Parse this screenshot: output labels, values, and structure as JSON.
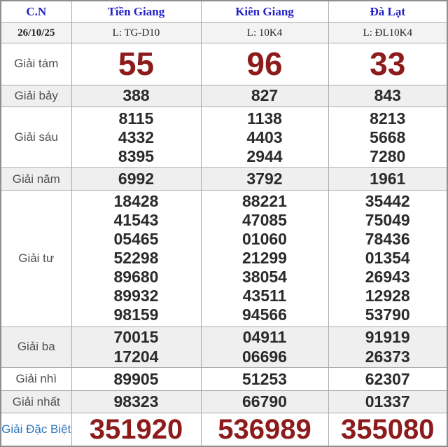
{
  "colors": {
    "link_blue": "#2222c8",
    "special_label_blue": "#2b74ba",
    "prize_red": "#8d1b1b",
    "row_stripe_gray": "#efefef"
  },
  "header": {
    "day": "C.N",
    "provinces": [
      "Tiền Giang",
      "Kiên Giang",
      "Đà Lạt"
    ]
  },
  "date_row": {
    "date": "26/10/25",
    "codes": [
      "L: TG-D10",
      "L: 10K4",
      "L: ĐL10K4"
    ]
  },
  "prizes": [
    {
      "label": "Giải tám",
      "cols": [
        [
          "55"
        ],
        [
          "96"
        ],
        [
          "33"
        ]
      ]
    },
    {
      "label": "Giải bảy",
      "cols": [
        [
          "388"
        ],
        [
          "827"
        ],
        [
          "843"
        ]
      ]
    },
    {
      "label": "Giải sáu",
      "cols": [
        [
          "8115",
          "4332",
          "8395"
        ],
        [
          "1138",
          "4403",
          "2944"
        ],
        [
          "8213",
          "5668",
          "7280"
        ]
      ]
    },
    {
      "label": "Giải năm",
      "cols": [
        [
          "6992"
        ],
        [
          "3792"
        ],
        [
          "1961"
        ]
      ]
    },
    {
      "label": "Giải tư",
      "cols": [
        [
          "18428",
          "41543",
          "05465",
          "52298",
          "89680",
          "89932",
          "98159"
        ],
        [
          "88221",
          "47085",
          "01060",
          "21299",
          "38054",
          "43511",
          "94566"
        ],
        [
          "35442",
          "75049",
          "78436",
          "01354",
          "26943",
          "12928",
          "53790"
        ]
      ]
    },
    {
      "label": "Giải ba",
      "cols": [
        [
          "70015",
          "17204"
        ],
        [
          "04911",
          "06696"
        ],
        [
          "91919",
          "26373"
        ]
      ]
    },
    {
      "label": "Giải nhì",
      "cols": [
        [
          "89905"
        ],
        [
          "51253"
        ],
        [
          "62307"
        ]
      ]
    },
    {
      "label": "Giải nhất",
      "cols": [
        [
          "98323"
        ],
        [
          "66790"
        ],
        [
          "01337"
        ]
      ]
    },
    {
      "label": "Giải Đặc Biệt",
      "cols": [
        [
          "351920"
        ],
        [
          "536989"
        ],
        [
          "355080"
        ]
      ]
    }
  ]
}
